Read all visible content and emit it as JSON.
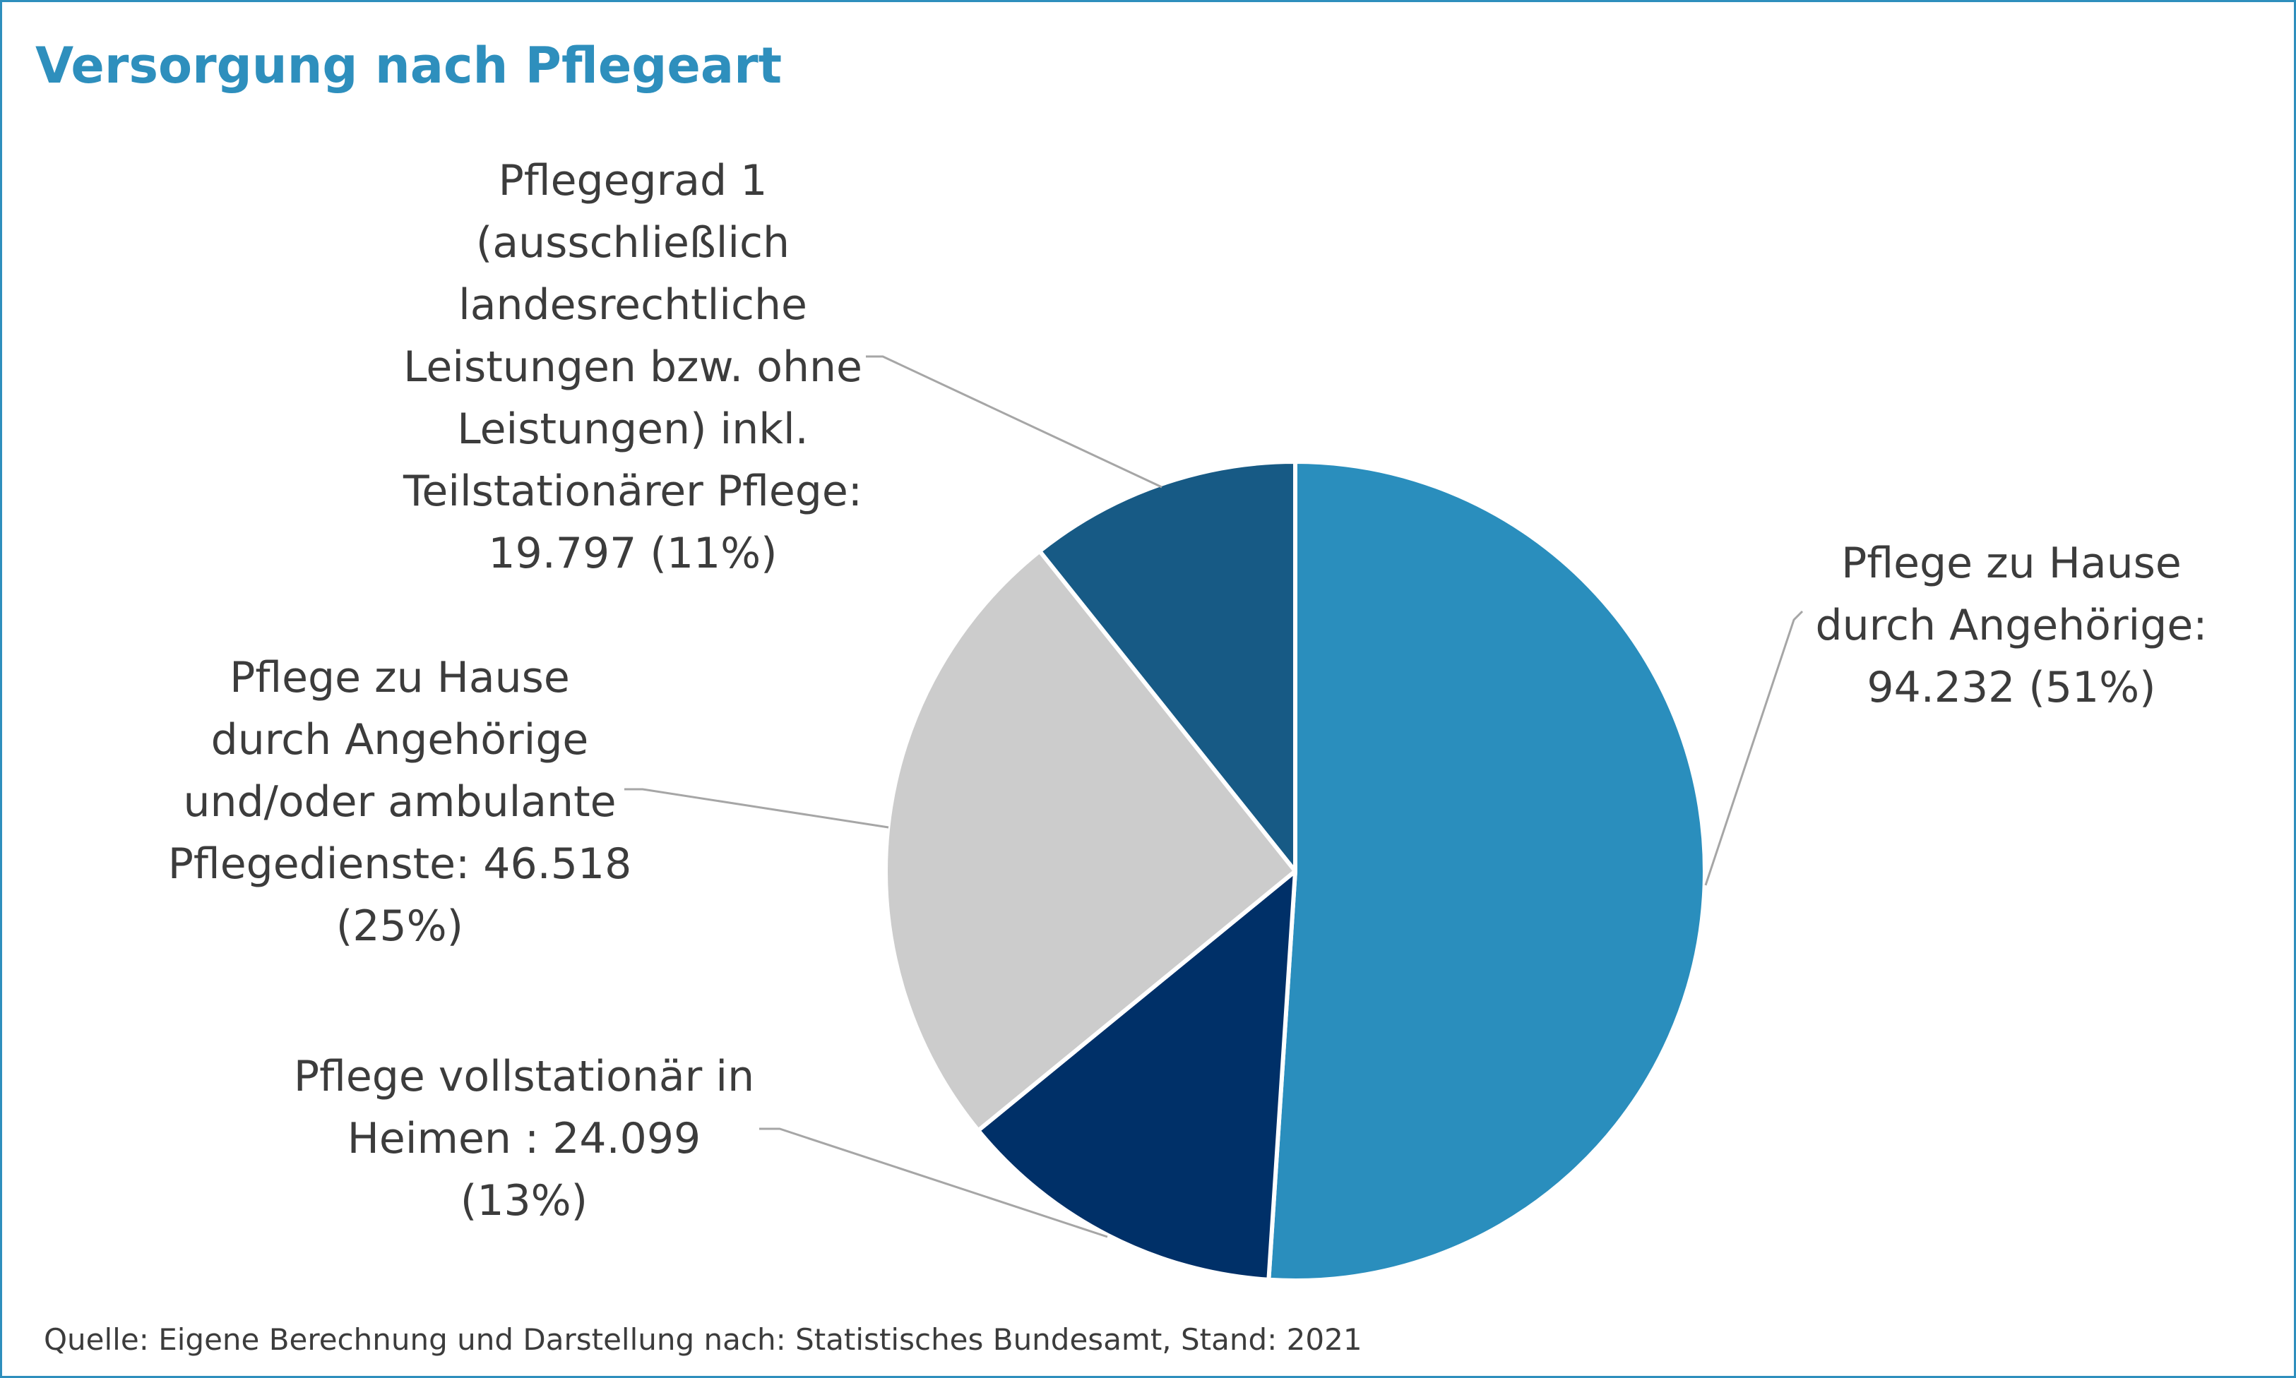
{
  "chart_data": {
    "type": "pie",
    "title": "Versorgung nach Pflegeart",
    "source": "Quelle: Eigene Berechnung und Darstellung nach: Statistisches Bundesamt, Stand: 2021",
    "slices": [
      {
        "name": "Pflege zu Hause durch Angehörige",
        "value": 94232,
        "percent": 51,
        "color": "#2a8ebd",
        "label_lines": [
          "Pflege zu Hause",
          "durch Angehörige:",
          "94.232 (51%)"
        ]
      },
      {
        "name": "Pflege vollstationär in Heimen",
        "value": 24099,
        "percent": 13,
        "color": "#003068",
        "label_lines": [
          "Pflege vollstationär in",
          "Heimen : 24.099",
          "(13%)"
        ]
      },
      {
        "name": "Pflege zu Hause durch Angehörige und/oder ambulante Pflegedienste",
        "value": 46518,
        "percent": 25,
        "color": "#cccccc",
        "label_lines": [
          "Pflege zu Hause",
          "durch Angehörige",
          "und/oder ambulante",
          "Pflegedienste: 46.518",
          "(25%)"
        ]
      },
      {
        "name": "Pflegegrad 1 (ausschließlich landesrechtliche Leistungen bzw. ohne Leistungen) inkl. Teilstationärer Pflege",
        "value": 19797,
        "percent": 11,
        "color": "#175a85",
        "label_lines": [
          "Pflegegrad 1",
          "(ausschließlich",
          "landesrechtliche",
          "Leistungen bzw. ohne",
          "Leistungen) inkl.",
          "Teilstationärer Pflege:",
          "19.797 (11%)"
        ]
      }
    ]
  }
}
